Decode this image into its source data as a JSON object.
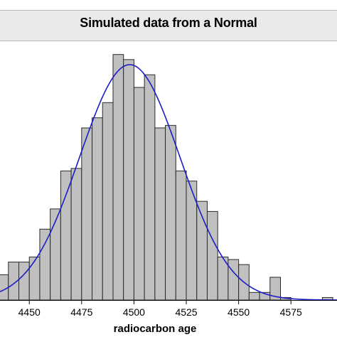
{
  "chart_data": {
    "type": "bar",
    "subtype": "histogram-with-fitted-normal-curve",
    "title": "Simulated data from a Normal",
    "xlabel": "radiocarbon age",
    "ylabel": "",
    "bin_width": 5,
    "x_view": [
      4436,
      4597
    ],
    "ylim": [
      0,
      100
    ],
    "x_ticks": [
      4450,
      4475,
      4500,
      4525,
      4550,
      4575
    ],
    "bins": [
      {
        "start": 4435,
        "end": 4440,
        "count": 10
      },
      {
        "start": 4440,
        "end": 4445,
        "count": 15
      },
      {
        "start": 4445,
        "end": 4450,
        "count": 15
      },
      {
        "start": 4450,
        "end": 4455,
        "count": 17
      },
      {
        "start": 4455,
        "end": 4460,
        "count": 28
      },
      {
        "start": 4460,
        "end": 4465,
        "count": 36
      },
      {
        "start": 4465,
        "end": 4470,
        "count": 51
      },
      {
        "start": 4470,
        "end": 4475,
        "count": 52
      },
      {
        "start": 4475,
        "end": 4480,
        "count": 68
      },
      {
        "start": 4480,
        "end": 4485,
        "count": 72
      },
      {
        "start": 4485,
        "end": 4490,
        "count": 78
      },
      {
        "start": 4490,
        "end": 4495,
        "count": 97
      },
      {
        "start": 4495,
        "end": 4500,
        "count": 95
      },
      {
        "start": 4500,
        "end": 4505,
        "count": 84
      },
      {
        "start": 4505,
        "end": 4510,
        "count": 89
      },
      {
        "start": 4510,
        "end": 4515,
        "count": 68
      },
      {
        "start": 4515,
        "end": 4520,
        "count": 69
      },
      {
        "start": 4520,
        "end": 4525,
        "count": 51
      },
      {
        "start": 4525,
        "end": 4530,
        "count": 47
      },
      {
        "start": 4530,
        "end": 4535,
        "count": 39
      },
      {
        "start": 4535,
        "end": 4540,
        "count": 35
      },
      {
        "start": 4540,
        "end": 4545,
        "count": 17
      },
      {
        "start": 4545,
        "end": 4550,
        "count": 16
      },
      {
        "start": 4550,
        "end": 4555,
        "count": 14
      },
      {
        "start": 4555,
        "end": 4560,
        "count": 3
      },
      {
        "start": 4560,
        "end": 4565,
        "count": 3
      },
      {
        "start": 4565,
        "end": 4570,
        "count": 9
      },
      {
        "start": 4570,
        "end": 4575,
        "count": 1
      },
      {
        "start": 4575,
        "end": 4580,
        "count": 0
      },
      {
        "start": 4580,
        "end": 4585,
        "count": 0
      },
      {
        "start": 4585,
        "end": 4590,
        "count": 0
      },
      {
        "start": 4590,
        "end": 4595,
        "count": 1
      }
    ],
    "fitted_curve": {
      "distribution": "normal",
      "mean": 4498,
      "sd": 24,
      "peak": 93
    },
    "colors": {
      "bar_fill": "#c0c0c0",
      "bar_stroke": "#2a2a2a",
      "curve": "#1c1cc8",
      "title_band": "#eaeaea",
      "frame": "#bdbdbd"
    },
    "grid": false,
    "legend": "none"
  }
}
